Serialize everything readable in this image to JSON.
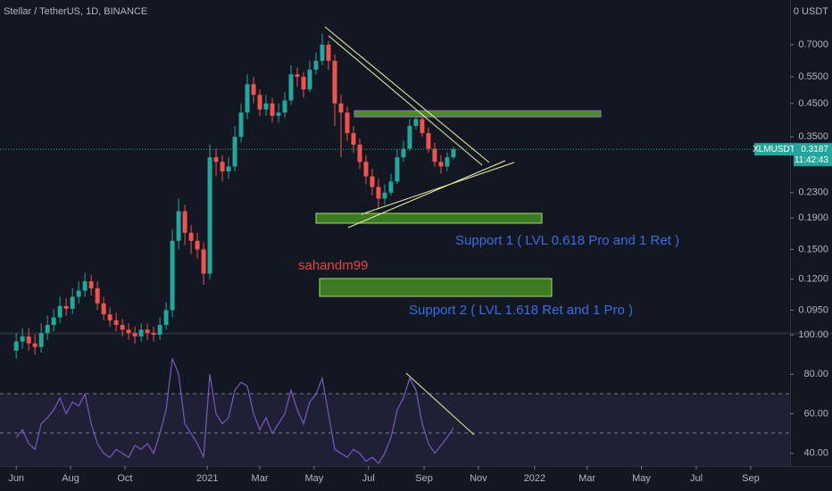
{
  "chart_data": {
    "type": "candlestick",
    "title": "Stellar / TetherUS, 1D, BINANCE",
    "currency_label": "0 USDT",
    "symbol": "XLMUSDT",
    "last_price": 0.3187,
    "timer": "11:42:43",
    "author": "sahandm99",
    "annotations": [
      "Support 1 ( LVL 0.618 Pro and 1 Ret )",
      "Support 2 ( LVL 1.618 Ret and 1 Pro )"
    ],
    "up_color": "#26a69a",
    "down_color": "#ef5350",
    "log_scale": true,
    "ylim": [
      0.08,
      0.98
    ],
    "yticks": [
      {
        "value": 0.7,
        "label": "0.7000"
      },
      {
        "value": 0.55,
        "label": "0.5500"
      },
      {
        "value": 0.45,
        "label": "0.4500"
      },
      {
        "value": 0.35,
        "label": "0.3500"
      },
      {
        "value": 0.23,
        "label": "0.2300"
      },
      {
        "value": 0.19,
        "label": "0.1900"
      },
      {
        "value": 0.15,
        "label": "0.1500"
      },
      {
        "value": 0.12,
        "label": "0.1200"
      },
      {
        "value": 0.095,
        "label": "0.0950"
      }
    ],
    "xlim": [
      -2.6,
      123.9
    ],
    "xticks": [
      {
        "value": 0,
        "label": "Jun"
      },
      {
        "value": 8.7,
        "label": "Aug"
      },
      {
        "value": 17.4,
        "label": "Oct"
      },
      {
        "value": 30.6,
        "label": "2021"
      },
      {
        "value": 39,
        "label": "Mar"
      },
      {
        "value": 47.7,
        "label": "May"
      },
      {
        "value": 56.4,
        "label": "Jul"
      },
      {
        "value": 65.3,
        "label": "Sep"
      },
      {
        "value": 74,
        "label": "Nov"
      },
      {
        "value": 83,
        "label": "2022"
      },
      {
        "value": 91.4,
        "label": "Mar"
      },
      {
        "value": 100.1,
        "label": "May"
      },
      {
        "value": 108.9,
        "label": "Jul"
      },
      {
        "value": 117.6,
        "label": "Sep"
      }
    ],
    "open": [
      0.07,
      0.075,
      0.078,
      0.074,
      0.072,
      0.08,
      0.085,
      0.09,
      0.098,
      0.096,
      0.105,
      0.11,
      0.118,
      0.112,
      0.1,
      0.092,
      0.088,
      0.085,
      0.082,
      0.08,
      0.078,
      0.082,
      0.08,
      0.079,
      0.085,
      0.095,
      0.16,
      0.2,
      0.17,
      0.16,
      0.15,
      0.125,
      0.3,
      0.29,
      0.27,
      0.28,
      0.35,
      0.42,
      0.52,
      0.48,
      0.43,
      0.45,
      0.41,
      0.42,
      0.46,
      0.56,
      0.55,
      0.5,
      0.58,
      0.62,
      0.7,
      0.62,
      0.45,
      0.42,
      0.36,
      0.33,
      0.29,
      0.26,
      0.24,
      0.22,
      0.23,
      0.25,
      0.3,
      0.32,
      0.38,
      0.4,
      0.36,
      0.32,
      0.29,
      0.28,
      0.3
    ],
    "high": [
      0.08,
      0.083,
      0.083,
      0.079,
      0.086,
      0.091,
      0.096,
      0.105,
      0.104,
      0.112,
      0.118,
      0.126,
      0.124,
      0.118,
      0.105,
      0.097,
      0.093,
      0.089,
      0.086,
      0.084,
      0.086,
      0.086,
      0.084,
      0.09,
      0.101,
      0.175,
      0.22,
      0.21,
      0.18,
      0.17,
      0.158,
      0.33,
      0.32,
      0.305,
      0.3,
      0.38,
      0.45,
      0.56,
      0.55,
      0.5,
      0.48,
      0.47,
      0.45,
      0.49,
      0.6,
      0.59,
      0.57,
      0.62,
      0.66,
      0.76,
      0.72,
      0.65,
      0.48,
      0.44,
      0.38,
      0.345,
      0.305,
      0.275,
      0.255,
      0.245,
      0.265,
      0.32,
      0.34,
      0.4,
      0.43,
      0.42,
      0.375,
      0.335,
      0.305,
      0.312,
      0.325
    ],
    "low": [
      0.066,
      0.071,
      0.07,
      0.068,
      0.069,
      0.076,
      0.081,
      0.086,
      0.091,
      0.092,
      0.1,
      0.105,
      0.106,
      0.095,
      0.088,
      0.084,
      0.081,
      0.078,
      0.076,
      0.074,
      0.075,
      0.076,
      0.075,
      0.076,
      0.082,
      0.09,
      0.15,
      0.155,
      0.145,
      0.14,
      0.115,
      0.12,
      0.26,
      0.25,
      0.255,
      0.27,
      0.335,
      0.4,
      0.45,
      0.41,
      0.41,
      0.39,
      0.39,
      0.405,
      0.445,
      0.51,
      0.47,
      0.49,
      0.56,
      0.6,
      0.58,
      0.38,
      0.3,
      0.34,
      0.31,
      0.275,
      0.245,
      0.225,
      0.205,
      0.21,
      0.225,
      0.245,
      0.29,
      0.315,
      0.37,
      0.35,
      0.31,
      0.28,
      0.265,
      0.27,
      0.295
    ],
    "close": [
      0.075,
      0.078,
      0.074,
      0.072,
      0.08,
      0.085,
      0.09,
      0.098,
      0.096,
      0.105,
      0.11,
      0.118,
      0.112,
      0.1,
      0.092,
      0.088,
      0.085,
      0.082,
      0.08,
      0.078,
      0.082,
      0.08,
      0.079,
      0.085,
      0.095,
      0.16,
      0.2,
      0.17,
      0.16,
      0.15,
      0.125,
      0.3,
      0.29,
      0.27,
      0.28,
      0.35,
      0.42,
      0.52,
      0.48,
      0.43,
      0.45,
      0.41,
      0.42,
      0.46,
      0.56,
      0.55,
      0.5,
      0.58,
      0.62,
      0.7,
      0.62,
      0.45,
      0.42,
      0.36,
      0.33,
      0.29,
      0.26,
      0.24,
      0.22,
      0.23,
      0.25,
      0.3,
      0.32,
      0.38,
      0.4,
      0.36,
      0.32,
      0.29,
      0.28,
      0.3,
      0.319
    ],
    "rsi": {
      "type": "line",
      "color": "#7e57c2",
      "ylim": [
        33.6,
        100
      ],
      "yticks": [
        {
          "value": 100,
          "label": "100.00"
        },
        {
          "value": 80,
          "label": "80.00"
        },
        {
          "value": 60,
          "label": "60.00"
        },
        {
          "value": 40,
          "label": "40.00"
        }
      ],
      "values": [
        48,
        52,
        45,
        42,
        55,
        58,
        62,
        68,
        60,
        66,
        64,
        70,
        55,
        45,
        40,
        38,
        42,
        40,
        38,
        44,
        42,
        45,
        40,
        50,
        62,
        88,
        80,
        55,
        50,
        45,
        38,
        80,
        60,
        55,
        58,
        72,
        76,
        74,
        60,
        52,
        58,
        50,
        55,
        60,
        72,
        62,
        55,
        66,
        70,
        78,
        60,
        42,
        40,
        38,
        42,
        40,
        36,
        38,
        35,
        40,
        48,
        62,
        68,
        78,
        72,
        55,
        45,
        40,
        44,
        48,
        53
      ]
    }
  }
}
